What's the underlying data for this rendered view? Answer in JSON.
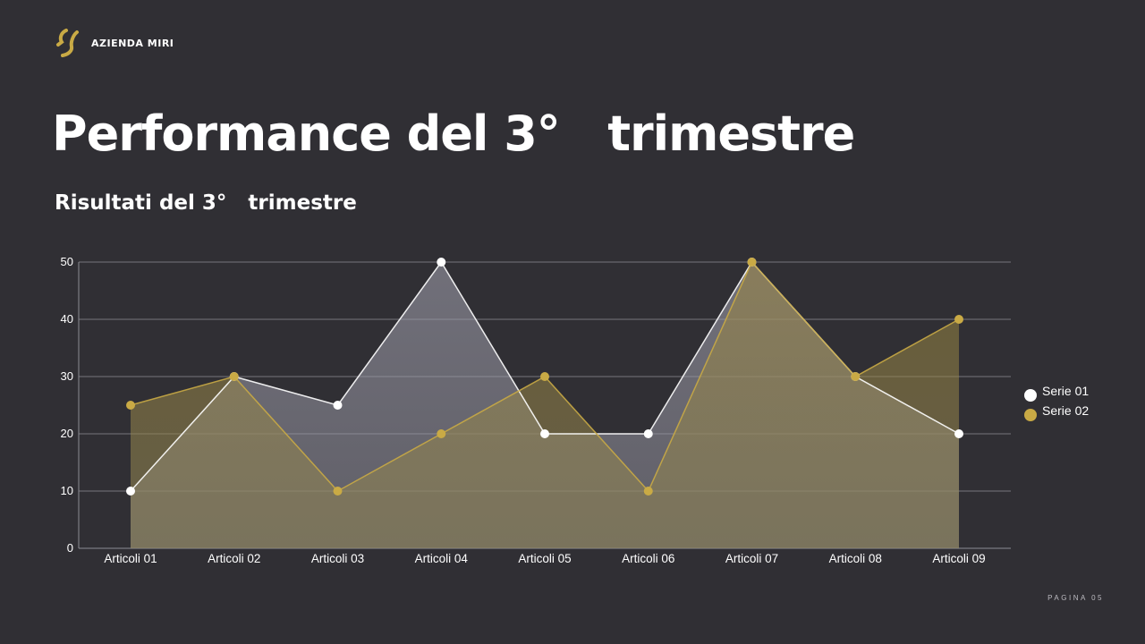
{
  "brand": {
    "name": "AZIENDA MIRI",
    "logo_icon": "double-slash-logo-icon",
    "accent_color": "#c9aa45"
  },
  "title": "Performance del 3°   trimestre",
  "subtitle": "Risultati del 3°   trimestre",
  "footer": {
    "page_label": "PAGINA 05"
  },
  "chart_data": {
    "type": "area",
    "categories": [
      "Articoli 01",
      "Articoli 02",
      "Articoli 03",
      "Articoli 04",
      "Articoli 05",
      "Articoli 06",
      "Articoli 07",
      "Articoli 08",
      "Articoli 09"
    ],
    "series": [
      {
        "name": "Serie 01",
        "color": "#ffffff",
        "values": [
          10,
          30,
          25,
          50,
          20,
          20,
          50,
          30,
          20
        ]
      },
      {
        "name": "Serie 02",
        "color": "#c9aa45",
        "values": [
          25,
          30,
          10,
          20,
          30,
          10,
          50,
          30,
          40
        ]
      }
    ],
    "ylim": [
      0,
      50
    ],
    "yticks": [
      0,
      10,
      20,
      30,
      40,
      50
    ],
    "grid": true,
    "legend": "right"
  }
}
